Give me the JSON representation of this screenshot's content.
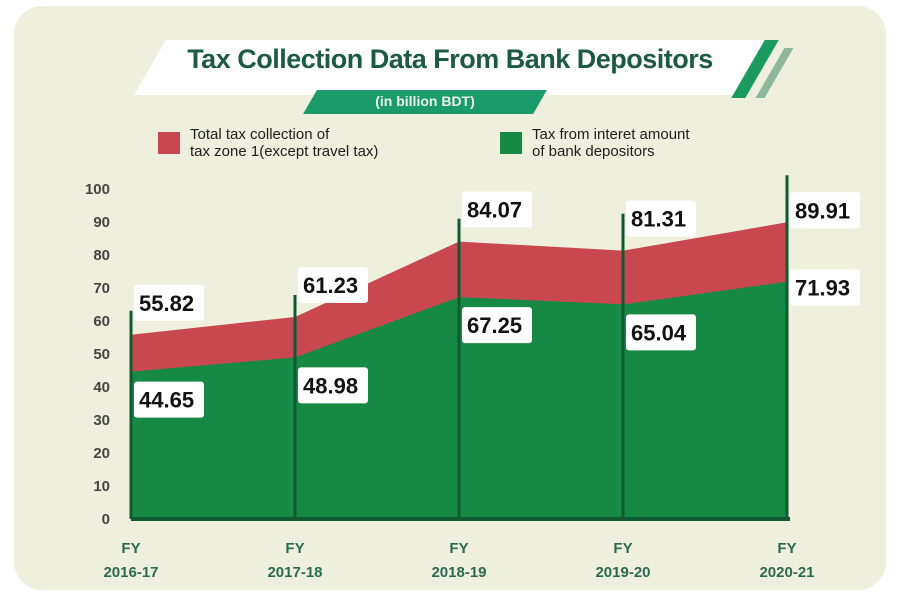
{
  "chart_data": {
    "type": "area",
    "title": "Tax Collection Data From Bank Depositors",
    "subtitle": "(in billion BDT)",
    "categories": [
      [
        "FY",
        "2016-17"
      ],
      [
        "FY",
        "2017-18"
      ],
      [
        "FY",
        "2018-19"
      ],
      [
        "FY",
        "2019-20"
      ],
      [
        "FY",
        "2020-21"
      ]
    ],
    "ylim": [
      0,
      100
    ],
    "yticks": [
      0,
      10,
      20,
      30,
      40,
      50,
      60,
      70,
      80,
      90,
      100
    ],
    "grid": false,
    "legend_position": "top",
    "series": [
      {
        "name": "Total tax collection of tax zone 1(except travel tax)",
        "values": [
          55.82,
          61.23,
          84.07,
          81.31,
          89.91
        ],
        "color": "#c9474f"
      },
      {
        "name": "Tax from interet amount of bank depositors",
        "values": [
          44.65,
          48.98,
          67.25,
          65.04,
          71.93
        ],
        "color": "#168a45"
      }
    ],
    "data_labels": {
      "total": [
        "55.82",
        "61.23",
        "84.07",
        "81.31",
        "89.91"
      ],
      "interest": [
        "44.65",
        "48.98",
        "67.25",
        "65.04",
        "71.93"
      ]
    }
  },
  "legend": {
    "total_line1": "Total tax collection of",
    "total_line2": "tax zone 1(except travel tax)",
    "interest_line1": "Tax from interet amount",
    "interest_line2": "of bank depositors"
  },
  "colors": {
    "background": "#eef0dd",
    "accent": "#1b9a6b",
    "axis": "#0f5a33"
  }
}
